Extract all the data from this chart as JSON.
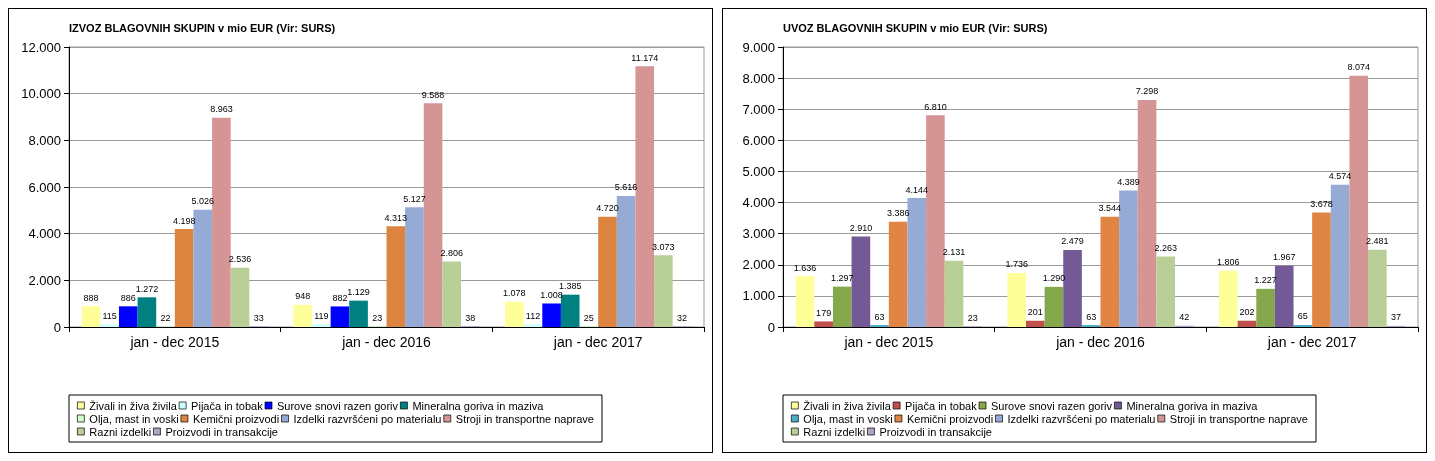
{
  "chart_data": [
    {
      "type": "bar",
      "title": "IZVOZ BLAGOVNIH SKUPIN v mio EUR (Vir: SURS)",
      "categories": [
        "jan - dec 2015",
        "jan - dec 2016",
        "jan - dec 2017"
      ],
      "series": [
        {
          "name": "Živali in živa živila",
          "color": "#ffff99",
          "values": [
            888,
            948,
            1078
          ],
          "value_labels": [
            "888",
            "948",
            "1.078"
          ]
        },
        {
          "name": "Pijača in tobak",
          "color": "#ccffff",
          "values": [
            115,
            119,
            112
          ],
          "value_labels": [
            "115",
            "119",
            "112"
          ]
        },
        {
          "name": "Surove snovi razen goriv",
          "color": "#0000ff",
          "values": [
            886,
            882,
            1008
          ],
          "value_labels": [
            "886",
            "882",
            "1.008"
          ]
        },
        {
          "name": "Mineralna goriva in maziva",
          "color": "#008080",
          "values": [
            1272,
            1129,
            1385
          ],
          "value_labels": [
            "1.272",
            "1.129",
            "1.385"
          ]
        },
        {
          "name": "Olja, mast in voski",
          "color": "#ccffcc",
          "values": [
            22,
            23,
            25
          ],
          "value_labels": [
            "22",
            "23",
            "25"
          ]
        },
        {
          "name": "Kemični proizvodi",
          "color": "#dd8540",
          "values": [
            4198,
            4313,
            4720
          ],
          "value_labels": [
            "4.198",
            "4.313",
            "4.720"
          ]
        },
        {
          "name": "Izdelki razvršćeni po materialu",
          "color": "#95abd6",
          "values": [
            5026,
            5127,
            5616
          ],
          "value_labels": [
            "5.026",
            "5.127",
            "5.616"
          ]
        },
        {
          "name": "Stroji in transportne naprave",
          "color": "#d59595",
          "values": [
            8963,
            9588,
            11174
          ],
          "value_labels": [
            "8.963",
            "9.588",
            "11.174"
          ]
        },
        {
          "name": "Razni izdelki",
          "color": "#b8d098",
          "values": [
            2536,
            2806,
            3073
          ],
          "value_labels": [
            "2.536",
            "2.806",
            "3.073"
          ]
        },
        {
          "name": "Proizvodi in transakcije",
          "color": "#b3a2c7",
          "values": [
            33,
            38,
            32
          ],
          "value_labels": [
            "33",
            "38",
            "32"
          ]
        }
      ],
      "ylim": [
        0,
        12000
      ],
      "yticks": [
        {
          "value": 0,
          "label": "0"
        },
        {
          "value": 2000,
          "label": "2.000"
        },
        {
          "value": 4000,
          "label": "4.000"
        },
        {
          "value": 6000,
          "label": "6.000"
        },
        {
          "value": 8000,
          "label": "8.000"
        },
        {
          "value": 10000,
          "label": "10.000"
        },
        {
          "value": 12000,
          "label": "12.000"
        }
      ],
      "grid": "y",
      "legend": "bottom"
    },
    {
      "type": "bar",
      "title": "UVOZ BLAGOVNIH SKUPIN v mio EUR (Vir: SURS)",
      "categories": [
        "jan - dec 2015",
        "jan - dec 2016",
        "jan - dec 2017"
      ],
      "series": [
        {
          "name": "Živali in živa živila",
          "color": "#ffff99",
          "values": [
            1636,
            1736,
            1806
          ],
          "value_labels": [
            "1.636",
            "1.736",
            "1.806"
          ]
        },
        {
          "name": "Pijača in tobak",
          "color": "#c0504d",
          "values": [
            179,
            201,
            202
          ],
          "value_labels": [
            "179",
            "201",
            "202"
          ]
        },
        {
          "name": "Surove snovi razen goriv",
          "color": "#86a84c",
          "values": [
            1297,
            1290,
            1227
          ],
          "value_labels": [
            "1.297",
            "1.290",
            "1.227"
          ]
        },
        {
          "name": "Mineralna goriva in maziva",
          "color": "#735a96",
          "values": [
            2910,
            2479,
            1967
          ],
          "value_labels": [
            "2.910",
            "2.479",
            "1.967"
          ]
        },
        {
          "name": "Olja, mast in voski",
          "color": "#4bacc6",
          "values": [
            63,
            63,
            65
          ],
          "value_labels": [
            "63",
            "63",
            "65"
          ]
        },
        {
          "name": "Kemični proizvodi",
          "color": "#e08543",
          "values": [
            3386,
            3544,
            3678
          ],
          "value_labels": [
            "3.386",
            "3.544",
            "3.678"
          ]
        },
        {
          "name": "Izdelki razvršćeni po materialu",
          "color": "#95abd6",
          "values": [
            4144,
            4389,
            4574
          ],
          "value_labels": [
            "4.144",
            "4.389",
            "4.574"
          ]
        },
        {
          "name": "Stroji in transportne naprave",
          "color": "#d59595",
          "values": [
            6810,
            7298,
            8074
          ],
          "value_labels": [
            "6.810",
            "7.298",
            "8.074"
          ]
        },
        {
          "name": "Razni izdelki",
          "color": "#b8d098",
          "values": [
            2131,
            2263,
            2481
          ],
          "value_labels": [
            "2.131",
            "2.263",
            "2.481"
          ]
        },
        {
          "name": "Proizvodi in transakcije",
          "color": "#b3a2c7",
          "values": [
            23,
            42,
            37
          ],
          "value_labels": [
            "23",
            "42",
            "37"
          ]
        }
      ],
      "ylim": [
        0,
        9000
      ],
      "yticks": [
        {
          "value": 0,
          "label": "0"
        },
        {
          "value": 1000,
          "label": "1.000"
        },
        {
          "value": 2000,
          "label": "2.000"
        },
        {
          "value": 3000,
          "label": "3.000"
        },
        {
          "value": 4000,
          "label": "4.000"
        },
        {
          "value": 5000,
          "label": "5.000"
        },
        {
          "value": 6000,
          "label": "6.000"
        },
        {
          "value": 7000,
          "label": "7.000"
        },
        {
          "value": 8000,
          "label": "8.000"
        },
        {
          "value": 9000,
          "label": "9.000"
        }
      ],
      "grid": "y",
      "legend": "bottom"
    }
  ]
}
